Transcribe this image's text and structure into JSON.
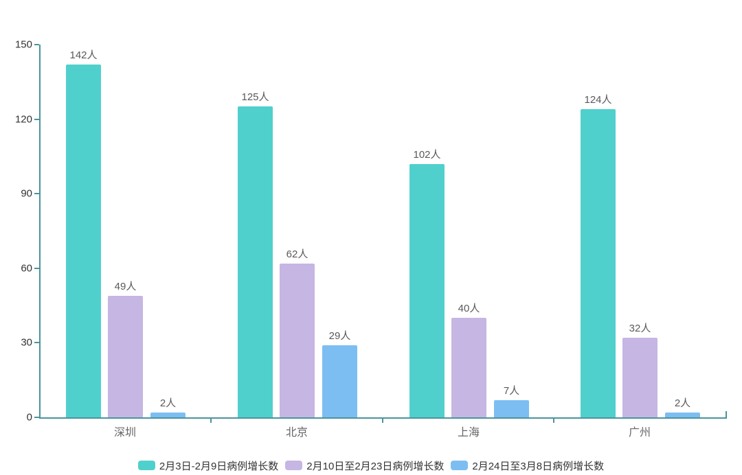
{
  "chart_data": {
    "type": "bar",
    "title": "",
    "xlabel": "",
    "ylabel": "",
    "categories": [
      "深圳",
      "北京",
      "上海",
      "广州"
    ],
    "series": [
      {
        "name": "2月3日-2月9日病例增长数",
        "color": "#50d0cc",
        "values": [
          142,
          125,
          102,
          124
        ]
      },
      {
        "name": "2月10日至2月23日病例增长数",
        "color": "#c5b6e3",
        "values": [
          49,
          62,
          40,
          32
        ]
      },
      {
        "name": "2月24日至3月8日病例增长数",
        "color": "#7cbef2",
        "values": [
          2,
          29,
          7,
          2
        ]
      }
    ],
    "value_suffix": "人",
    "y_axis": {
      "min": 0,
      "max": 150,
      "ticks": [
        0,
        30,
        60,
        90,
        120,
        150
      ]
    },
    "grid": false,
    "legend_position": "bottom"
  },
  "colors": {
    "axis": "#4b939c",
    "tick_label": "#333333",
    "category_label": "#666666",
    "data_label": "#595959",
    "legend_text": "#333333",
    "background": "#ffffff"
  }
}
